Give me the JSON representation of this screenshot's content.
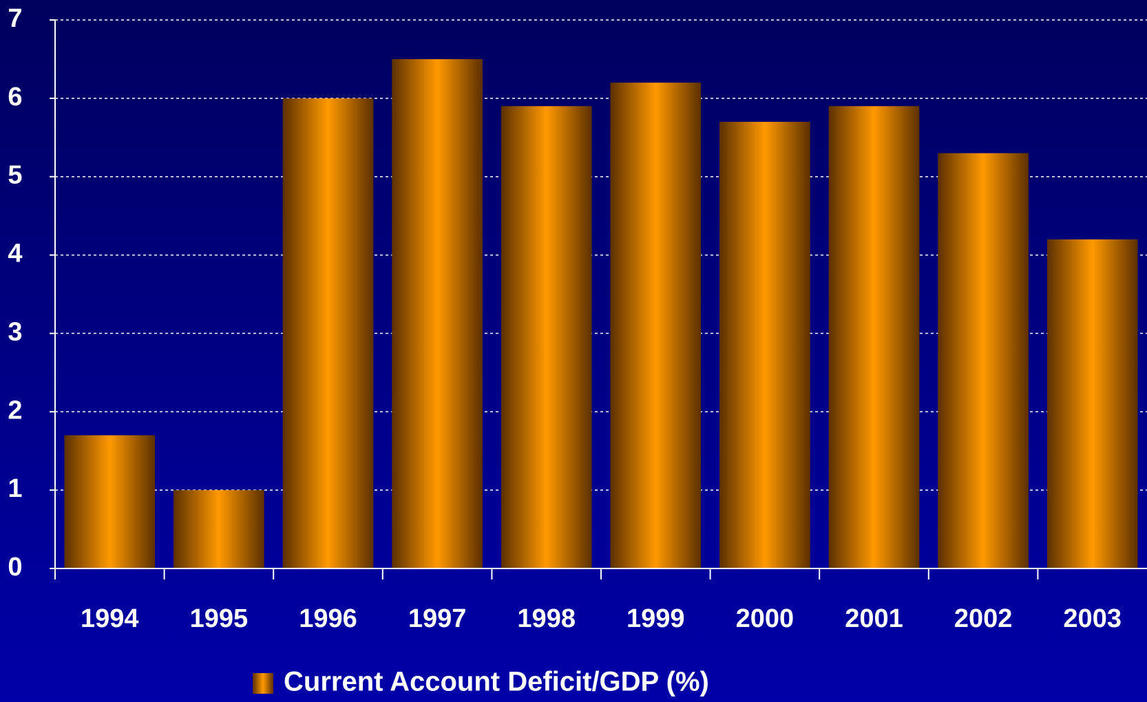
{
  "chart_data": {
    "type": "bar",
    "categories": [
      "1994",
      "1995",
      "1996",
      "1997",
      "1998",
      "1999",
      "2000",
      "2001",
      "2002",
      "2003"
    ],
    "series": [
      {
        "name": "Current Account Deficit/GDP (%)",
        "color": "#ff9900",
        "values": [
          1.7,
          1.0,
          6.0,
          6.5,
          5.9,
          6.2,
          5.7,
          5.9,
          5.3,
          4.2
        ]
      }
    ],
    "ylim": [
      0,
      7
    ],
    "yticks": [
      0,
      1,
      2,
      3,
      4,
      5,
      6,
      7
    ],
    "grid": true,
    "legend": "bottom"
  }
}
